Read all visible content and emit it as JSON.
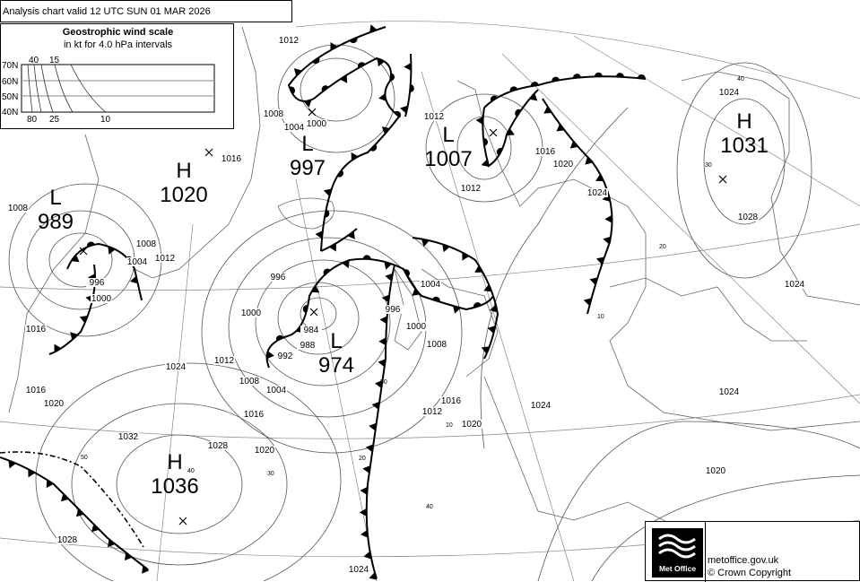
{
  "header": {
    "title": "Analysis chart  valid 12 UTC SUN 01  MAR 2026"
  },
  "wind_scale": {
    "title": "Geostrophic wind scale",
    "subtitle": "in kt for 4.0 hPa intervals",
    "latitudes": [
      "70N",
      "60N",
      "50N",
      "40N"
    ],
    "top_labels": [
      "40",
      "15"
    ],
    "bottom_labels": [
      "80",
      "25",
      "10"
    ]
  },
  "pressure_centres": [
    {
      "type": "L",
      "value": "989"
    },
    {
      "type": "H",
      "value": "1020"
    },
    {
      "type": "L",
      "value": "997"
    },
    {
      "type": "L",
      "value": "1007"
    },
    {
      "type": "H",
      "value": "1031"
    },
    {
      "type": "L",
      "value": "974"
    },
    {
      "type": "H",
      "value": "1036"
    }
  ],
  "isobar_labels": [
    "1012",
    "1008",
    "1004",
    "1000",
    "1016",
    "1008",
    "1008",
    "1012",
    "1004",
    "996",
    "1000",
    "1016",
    "1016",
    "1020",
    "1024",
    "1012",
    "1008",
    "1004",
    "1016",
    "1020",
    "1028",
    "1032",
    "1028",
    "1024",
    "996",
    "1000",
    "992",
    "988",
    "984",
    "1012",
    "1012",
    "1016",
    "1020",
    "1024",
    "1004",
    "1000",
    "996",
    "1008",
    "1016",
    "1012",
    "1020",
    "1024",
    "1024",
    "1020",
    "1024",
    "1028",
    "1024"
  ],
  "lat_labels": [
    "40",
    "30",
    "20",
    "10",
    "50",
    "40",
    "30",
    "20",
    "10",
    "50",
    "40"
  ],
  "colors": {
    "lines": "#000000",
    "isobars": "#555555",
    "background": "#ffffff"
  },
  "footer": {
    "logo_text": "Met Office",
    "website": "metoffice.gov.uk",
    "copyright": "© Crown Copyright"
  }
}
